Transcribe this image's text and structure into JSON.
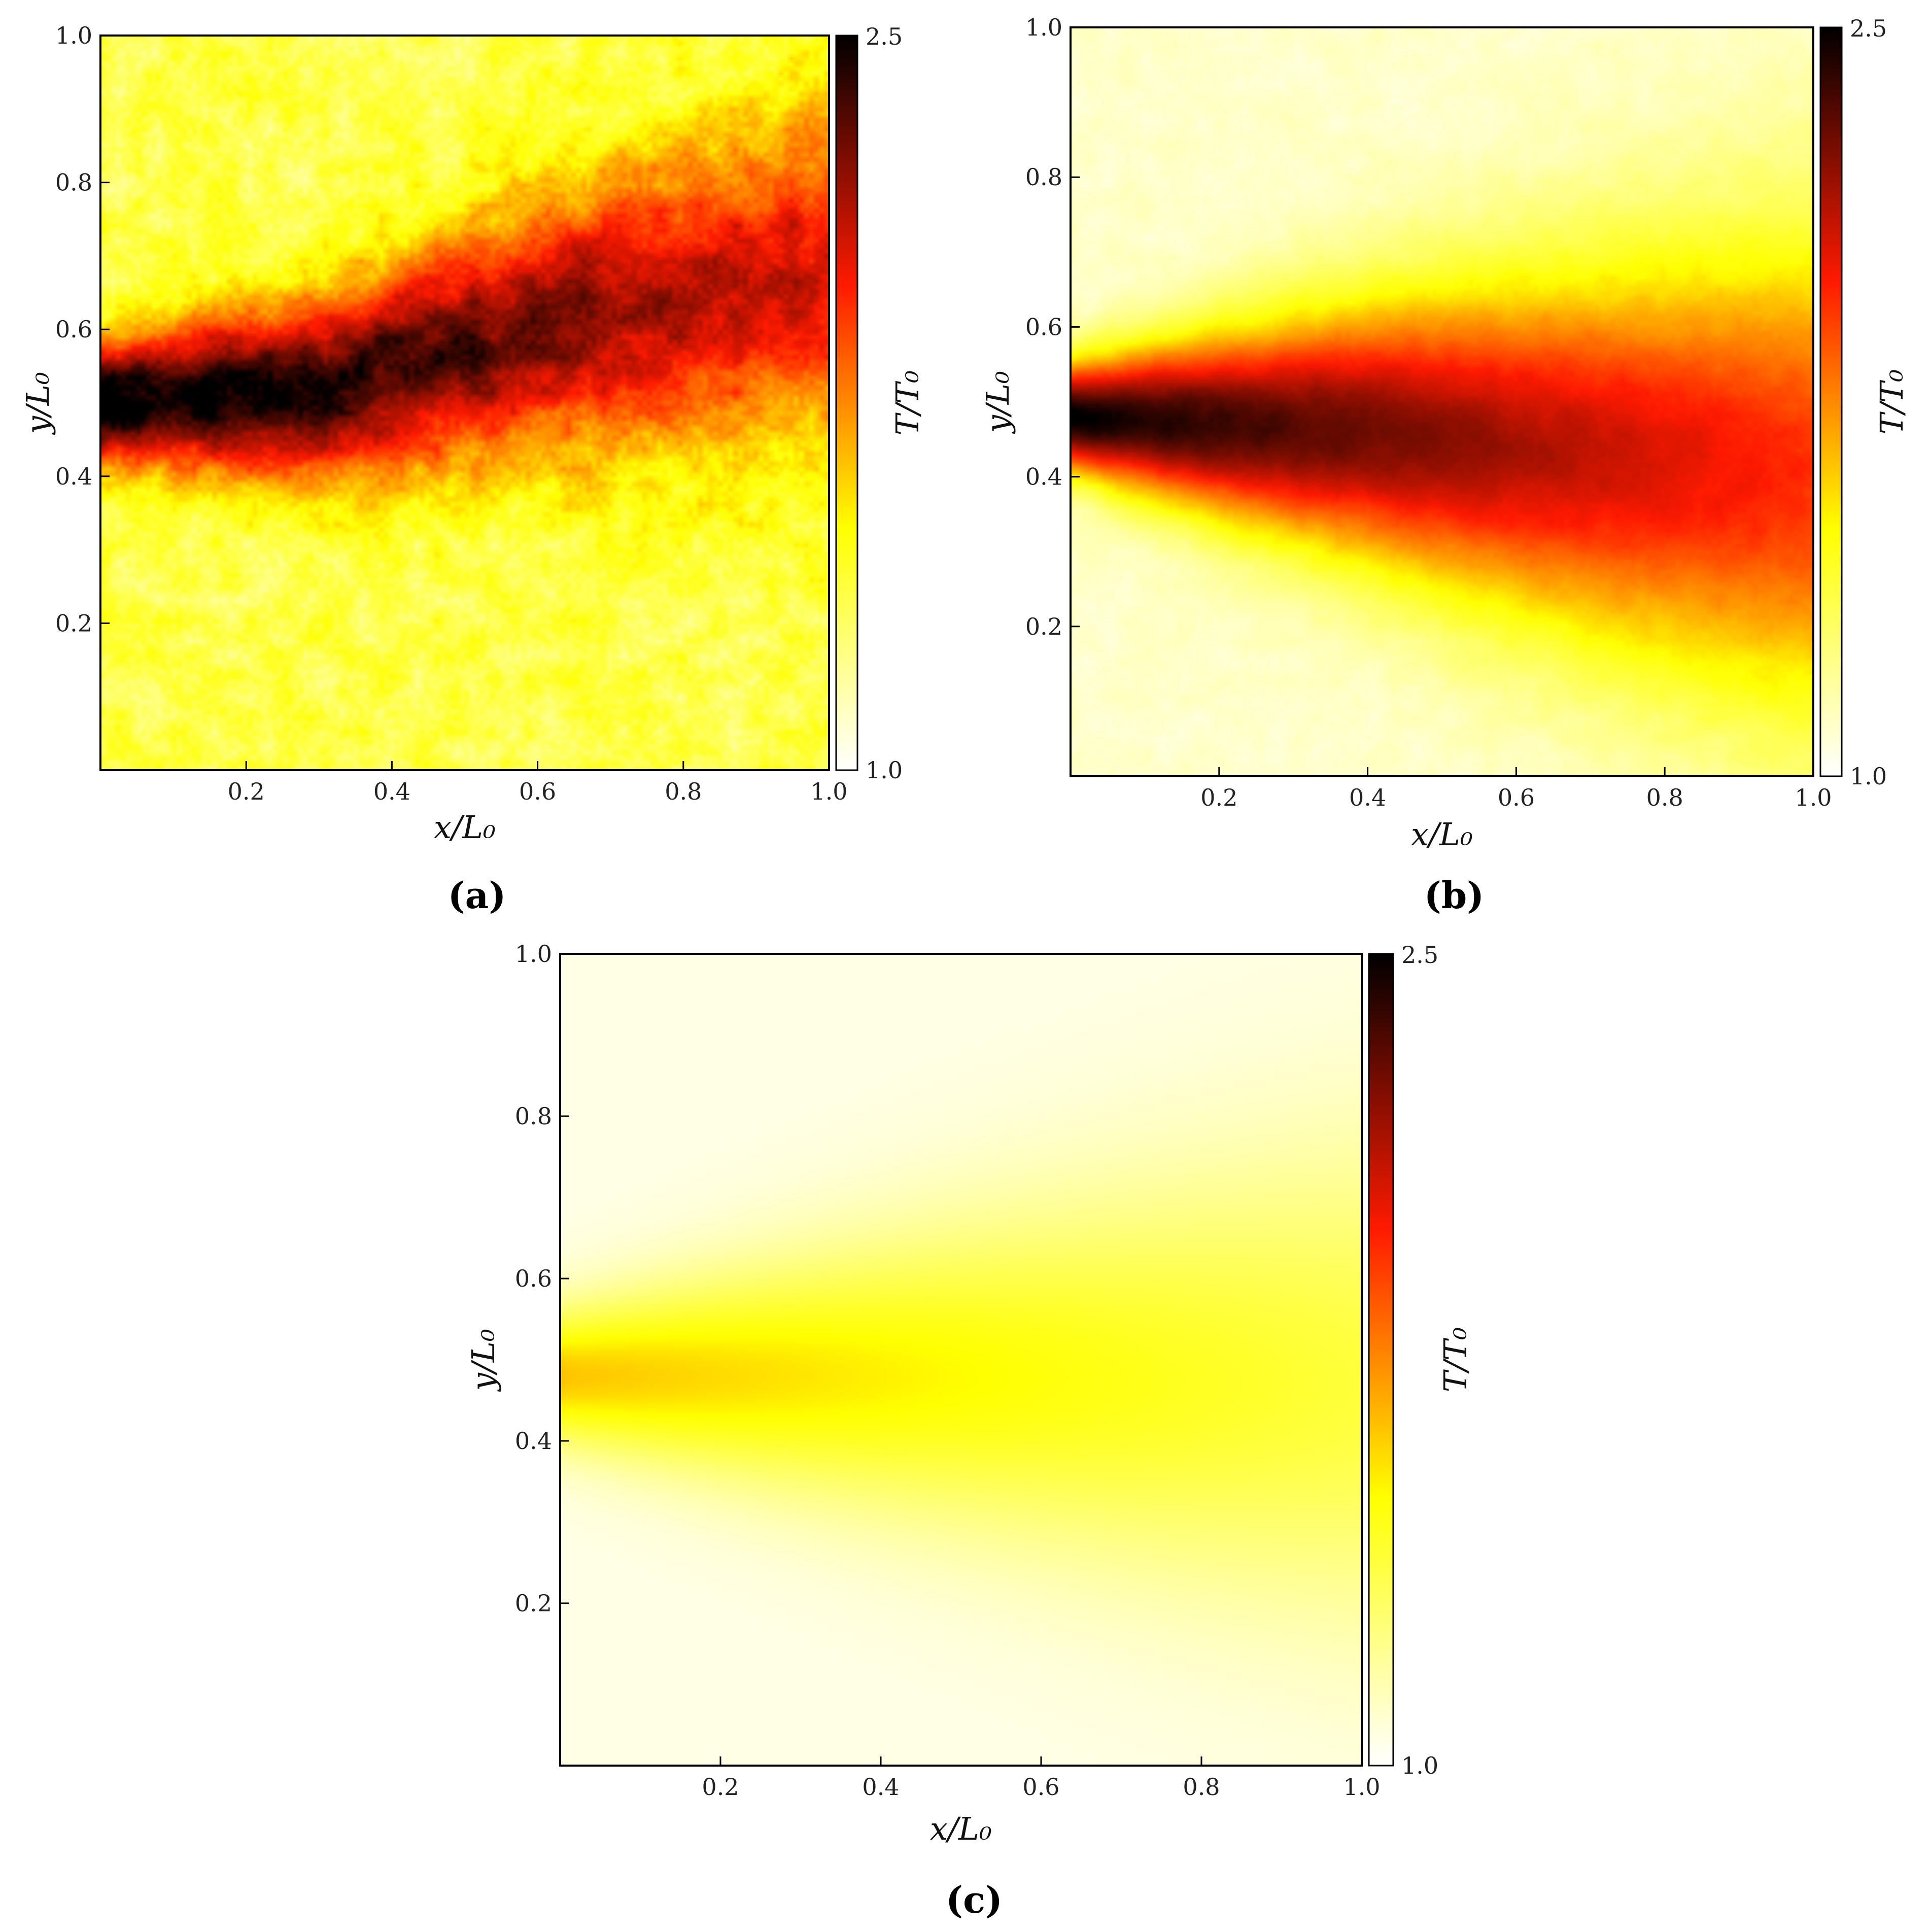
{
  "chart_data": [
    {
      "type": "heatmap",
      "panel_label": "(a)",
      "xlabel": "x/L₀",
      "ylabel": "y/L₀",
      "xlim": [
        0.0,
        1.0
      ],
      "ylim": [
        0.0,
        1.0
      ],
      "x_ticks": [
        "0.2",
        "0.4",
        "0.6",
        "0.8",
        "1.0"
      ],
      "y_ticks": [
        "0.2",
        "0.4",
        "0.6",
        "0.8",
        "1.0"
      ],
      "colorbar": {
        "label": "T/T₀",
        "min_label": "1.0",
        "max_label": "2.5",
        "range": [
          1.0,
          2.5
        ],
        "colormap": "hot_r"
      },
      "field": {
        "background": 1.35,
        "jet_centerline": [
          [
            0.0,
            0.5
          ],
          [
            0.3,
            0.52
          ],
          [
            0.6,
            0.6
          ],
          [
            1.0,
            0.68
          ]
        ],
        "peak": 2.6,
        "half_width_start": 0.065,
        "half_width_end": 0.19,
        "peak_at_end": 2.05,
        "noise": 0.12
      }
    },
    {
      "type": "heatmap",
      "panel_label": "(b)",
      "xlabel": "x/L₀",
      "ylabel": "y/L₀",
      "xlim": [
        0.0,
        1.0
      ],
      "ylim": [
        0.0,
        1.0
      ],
      "x_ticks": [
        "0.2",
        "0.4",
        "0.6",
        "0.8",
        "1.0"
      ],
      "y_ticks": [
        "0.2",
        "0.4",
        "0.6",
        "0.8",
        "1.0"
      ],
      "colorbar": {
        "label": "T/T₀",
        "min_label": "1.0",
        "max_label": "2.5",
        "range": [
          1.0,
          2.5
        ],
        "colormap": "hot_r"
      },
      "field": {
        "background": 1.1,
        "jet_centerline": [
          [
            0.0,
            0.48
          ],
          [
            0.4,
            0.46
          ],
          [
            0.7,
            0.43
          ],
          [
            1.0,
            0.4
          ]
        ],
        "peak": 2.5,
        "half_width_start": 0.06,
        "half_width_end": 0.27,
        "peak_at_end": 1.95,
        "noise": 0.03
      }
    },
    {
      "type": "heatmap",
      "panel_label": "(c)",
      "xlabel": "x/L₀",
      "ylabel": "y/L₀",
      "xlim": [
        0.0,
        1.0
      ],
      "ylim": [
        0.0,
        1.0
      ],
      "x_ticks": [
        "0.2",
        "0.4",
        "0.6",
        "0.8",
        "1.0"
      ],
      "y_ticks": [
        "0.2",
        "0.4",
        "0.6",
        "0.8",
        "1.0"
      ],
      "colorbar": {
        "label": "T/T₀",
        "min_label": "1.0",
        "max_label": "2.5",
        "range": [
          1.0,
          2.5
        ],
        "colormap": "hot_r"
      },
      "field": {
        "background": 1.05,
        "jet_centerline": [
          [
            0.0,
            0.48
          ],
          [
            0.5,
            0.48
          ],
          [
            1.0,
            0.47
          ]
        ],
        "peak": 1.62,
        "half_width_start": 0.07,
        "half_width_end": 0.24,
        "peak_at_end": 1.38,
        "noise": 0.0
      }
    }
  ]
}
